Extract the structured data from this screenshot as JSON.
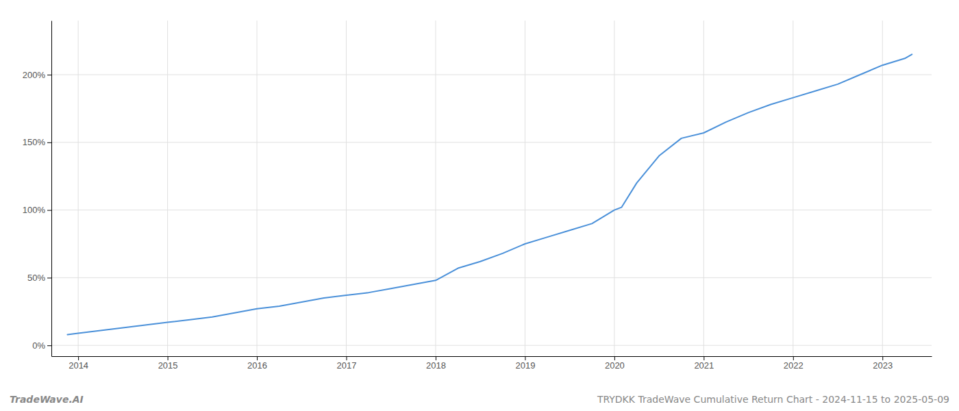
{
  "chart_data": {
    "type": "line",
    "title": "TRYDKK TradeWave Cumulative Return Chart - 2024-11-15 to 2025-05-09",
    "annotations": [
      "TradeWave.AI"
    ],
    "x": [
      2013.88,
      2014.0,
      2014.25,
      2014.5,
      2014.75,
      2015.0,
      2015.25,
      2015.5,
      2015.75,
      2016.0,
      2016.25,
      2016.5,
      2016.75,
      2017.0,
      2017.25,
      2017.5,
      2017.75,
      2018.0,
      2018.25,
      2018.5,
      2018.75,
      2019.0,
      2019.25,
      2019.5,
      2019.75,
      2020.0,
      2020.08,
      2020.25,
      2020.5,
      2020.75,
      2021.0,
      2021.25,
      2021.5,
      2021.75,
      2022.0,
      2022.25,
      2022.5,
      2022.75,
      2023.0,
      2023.25,
      2023.33
    ],
    "values": [
      8,
      9,
      11,
      13,
      15,
      17,
      19,
      21,
      24,
      27,
      29,
      32,
      35,
      37,
      39,
      42,
      45,
      48,
      57,
      62,
      68,
      75,
      80,
      85,
      90,
      100,
      102,
      120,
      140,
      153,
      157,
      165,
      172,
      178,
      183,
      188,
      193,
      200,
      207,
      212,
      215
    ],
    "color": "#4a90d9",
    "xlim": [
      2013.7,
      2023.55
    ],
    "xticks": [
      2014,
      2015,
      2016,
      2017,
      2018,
      2019,
      2020,
      2021,
      2022,
      2023
    ],
    "ylim": [
      -8,
      240
    ],
    "yticks": [
      {
        "value": 0,
        "label": "0%"
      },
      {
        "value": 50,
        "label": "50%"
      },
      {
        "value": 100,
        "label": "100%"
      },
      {
        "value": 150,
        "label": "150%"
      },
      {
        "value": 200,
        "label": "200%"
      }
    ],
    "grid": true
  }
}
